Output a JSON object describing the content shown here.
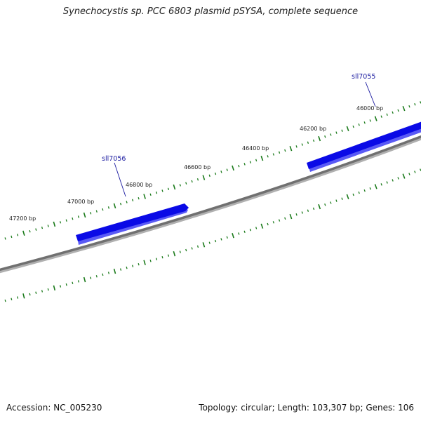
{
  "title": "Synechocystis sp. PCC 6803 plasmid pSYSA, complete sequence",
  "footer": {
    "accession": "Accession: NC_005230",
    "summary": "Topology: circular; Length: 103,307 bp; Genes: 106"
  },
  "colors": {
    "backbone": "#707070",
    "tick": "#1a7a1a",
    "gene": "#0a0ae6",
    "gene_label": "#1a1aa0"
  },
  "ticks": [
    {
      "label": "46000 bp"
    },
    {
      "label": "46200 bp"
    },
    {
      "label": "46400 bp"
    },
    {
      "label": "46600 bp"
    },
    {
      "label": "46800 bp"
    },
    {
      "label": "47000 bp"
    },
    {
      "label": "47200 bp"
    }
  ],
  "genes": [
    {
      "name": "sll7055",
      "strand": "+"
    },
    {
      "name": "sll7056",
      "strand": "+"
    }
  ]
}
